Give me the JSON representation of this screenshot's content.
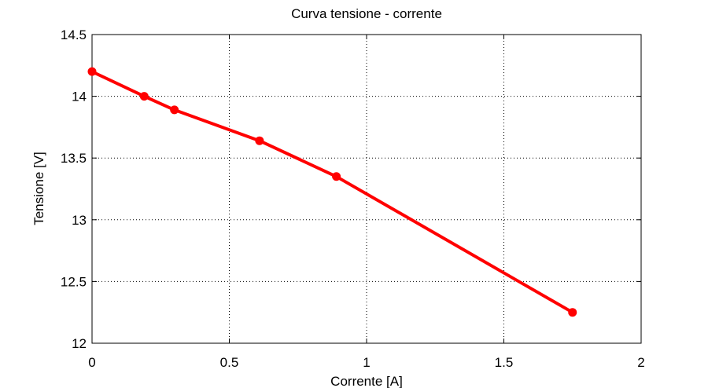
{
  "chart_data": {
    "type": "line",
    "title": "Curva tensione - corrente",
    "xlabel": "Corrente [A]",
    "ylabel": "Tensione [V]",
    "xlim": [
      0,
      2
    ],
    "ylim": [
      12,
      14.5
    ],
    "xticks": [
      0,
      0.5,
      1,
      1.5,
      2
    ],
    "yticks": [
      12,
      12.5,
      13,
      13.5,
      14,
      14.5
    ],
    "xtick_labels": [
      "0",
      "0.5",
      "1",
      "1.5",
      "2"
    ],
    "ytick_labels": [
      "12",
      "12.5",
      "13",
      "13.5",
      "14",
      "14.5"
    ],
    "grid": true,
    "grid_style": "dotted",
    "series": [
      {
        "x": [
          0,
          0.19,
          0.3,
          0.61,
          0.89,
          1.75
        ],
        "y": [
          14.2,
          14.0,
          13.89,
          13.64,
          13.35,
          12.25
        ],
        "color": "#ff0000",
        "marker": "circle"
      }
    ]
  }
}
